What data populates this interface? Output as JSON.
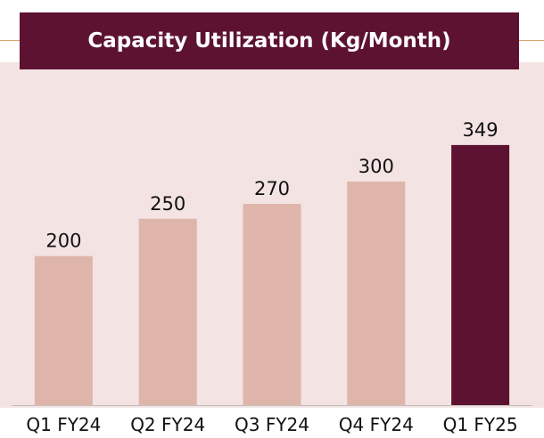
{
  "chart_data": {
    "type": "bar",
    "title": "Capacity Utilization (Kg/Month)",
    "xlabel": "",
    "ylabel": "",
    "categories": [
      "Q1 FY24",
      "Q2 FY24",
      "Q3 FY24",
      "Q4 FY24",
      "Q1 FY25"
    ],
    "values": [
      200,
      250,
      270,
      300,
      349
    ],
    "value_labels": [
      "200",
      "250",
      "270",
      "300",
      "349"
    ],
    "ylim": [
      0,
      460
    ],
    "grid": false,
    "legend": "none",
    "colors": {
      "bar": "#dfb5ab",
      "highlight_bar": "#5d1231",
      "panel_background": "#f3e3e2",
      "title_background": "#5d1231",
      "title_text": "#ffffff",
      "axis_line": "#bfbfbf",
      "divider": "#d9a26e"
    },
    "highlight_index": 4
  }
}
